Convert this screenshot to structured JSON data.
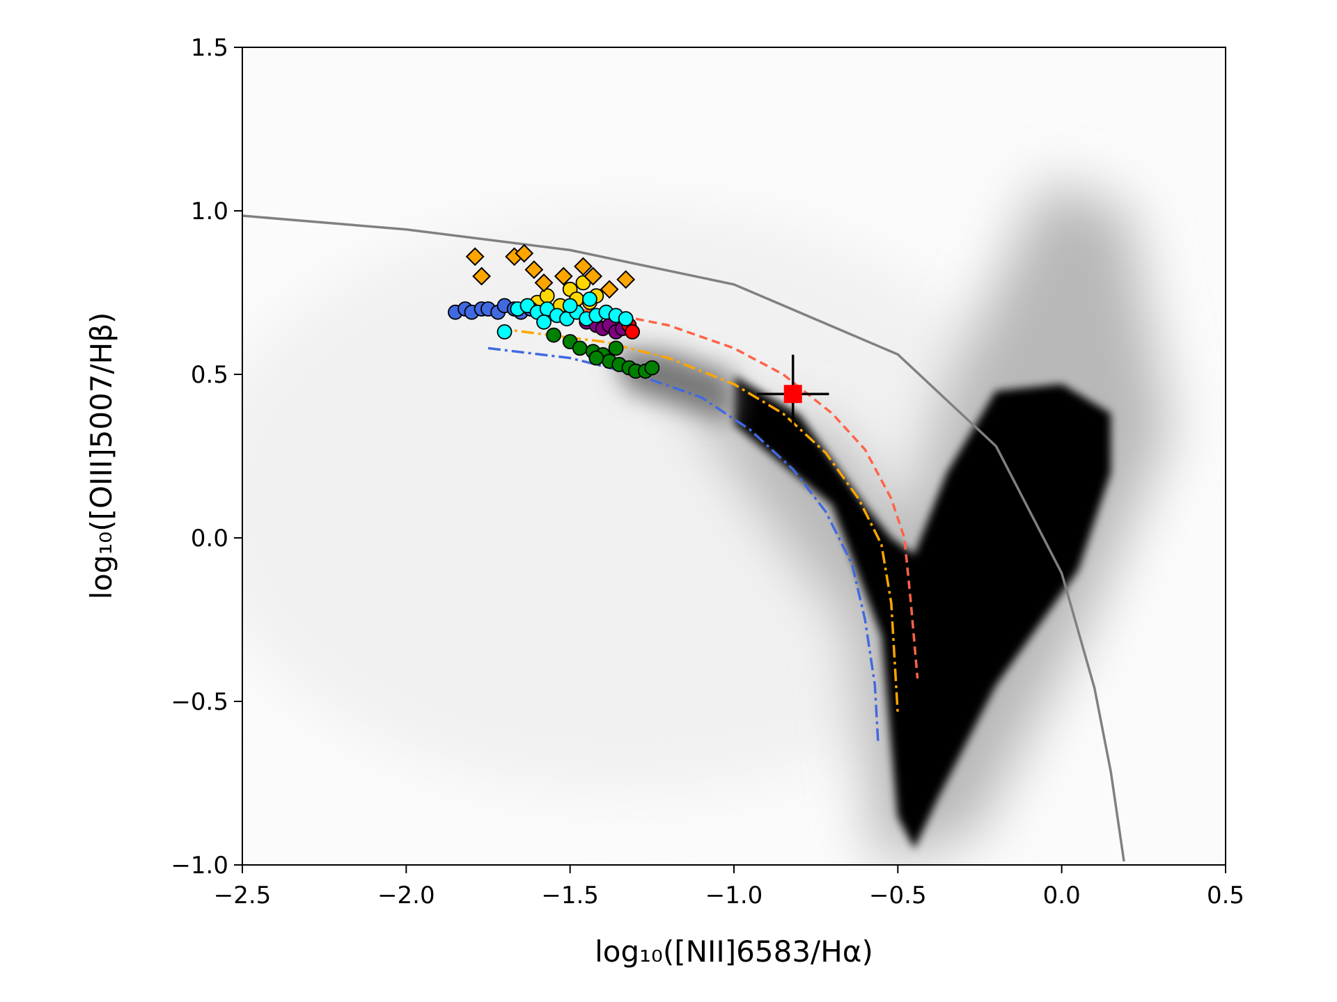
{
  "chart_data": {
    "type": "scatter",
    "xlabel": "log₁₀([NII]6583/Hα)",
    "ylabel": "log₁₀([OIII]5007/Hβ)",
    "xlim": [
      -2.5,
      0.5
    ],
    "ylim": [
      -1.0,
      1.5
    ],
    "xticks": [
      {
        "value": -2.5,
        "label": "−2.5"
      },
      {
        "value": -2.0,
        "label": "−2.0"
      },
      {
        "value": -1.5,
        "label": "−1.5"
      },
      {
        "value": -1.0,
        "label": "−1.0"
      },
      {
        "value": -0.5,
        "label": "−0.5"
      },
      {
        "value": 0,
        "label": "0.0"
      },
      0.5
    ],
    "yticks": [
      {
        "value": -1.0,
        "label": "−1.0"
      },
      {
        "value": -0.5,
        "label": "−0.5"
      },
      {
        "value": 0,
        "label": "0.0"
      },
      0.5,
      {
        "value": 1.0,
        "label": "1.0"
      },
      1.5
    ],
    "series": [
      {
        "kind": "line",
        "color": "#808080",
        "dash": "",
        "x": [
          -2.5,
          -2.0,
          -1.5,
          -1.0,
          -0.5,
          -0.2,
          0.0,
          0.1,
          0.15,
          0.19
        ],
        "values": [
          0.985,
          0.943,
          0.88,
          0.775,
          0.561,
          0.28,
          -0.108,
          -0.459,
          -0.716,
          -0.989
        ]
      },
      {
        "kind": "line",
        "color": "#ff6347",
        "dash": "12 7",
        "x": [
          -1.7,
          -1.4,
          -1.2,
          -1.0,
          -0.85,
          -0.7,
          -0.6,
          -0.52,
          -0.48,
          -0.46,
          -0.44
        ],
        "values": [
          0.72,
          0.69,
          0.65,
          0.58,
          0.5,
          0.38,
          0.27,
          0.12,
          0.0,
          -0.2,
          -0.43
        ]
      },
      {
        "kind": "line",
        "color": "#ffa500",
        "dash": "18 6 4 6",
        "x": [
          -1.72,
          -1.4,
          -1.2,
          -1.0,
          -0.85,
          -0.72,
          -0.62,
          -0.55,
          -0.52,
          -0.5
        ],
        "values": [
          0.64,
          0.6,
          0.55,
          0.47,
          0.38,
          0.26,
          0.12,
          -0.02,
          -0.2,
          -0.54
        ]
      },
      {
        "kind": "line",
        "color": "#4169e1",
        "dash": "18 6 4 6",
        "x": [
          -1.75,
          -1.5,
          -1.3,
          -1.1,
          -0.95,
          -0.82,
          -0.72,
          -0.64,
          -0.6,
          -0.57,
          -0.56
        ],
        "values": [
          0.58,
          0.55,
          0.5,
          0.43,
          0.33,
          0.21,
          0.08,
          -0.08,
          -0.25,
          -0.45,
          -0.63
        ]
      },
      {
        "kind": "circle",
        "color": "#008000",
        "x": [
          -1.55,
          -1.5,
          -1.47,
          -1.43,
          -1.4,
          -1.38,
          -1.35,
          -1.32,
          -1.3,
          -1.27,
          -1.25,
          -1.42,
          -1.36
        ],
        "values": [
          0.62,
          0.6,
          0.58,
          0.57,
          0.56,
          0.54,
          0.53,
          0.52,
          0.51,
          0.51,
          0.52,
          0.55,
          0.58
        ]
      },
      {
        "kind": "circle",
        "color": "#800080",
        "x": [
          -1.45,
          -1.42,
          -1.4,
          -1.38,
          -1.36,
          -1.34
        ],
        "values": [
          0.66,
          0.65,
          0.64,
          0.65,
          0.63,
          0.64
        ]
      },
      {
        "kind": "circle",
        "color": "#ff0000",
        "x": [
          -1.33,
          -1.32,
          -1.31
        ],
        "values": [
          0.67,
          0.65,
          0.63
        ]
      },
      {
        "kind": "circle",
        "color": "#ffd700",
        "x": [
          -1.6,
          -1.57,
          -1.53,
          -1.5,
          -1.48,
          -1.46,
          -1.44,
          -1.42
        ],
        "values": [
          0.72,
          0.74,
          0.71,
          0.76,
          0.73,
          0.78,
          0.72,
          0.74
        ]
      },
      {
        "kind": "circle",
        "color": "#4169e1",
        "x": [
          -1.85,
          -1.82,
          -1.8,
          -1.77,
          -1.75,
          -1.72,
          -1.7,
          -1.67,
          -1.65,
          -1.62
        ],
        "values": [
          0.69,
          0.7,
          0.69,
          0.7,
          0.7,
          0.69,
          0.71,
          0.7,
          0.69,
          0.7
        ]
      },
      {
        "kind": "circle",
        "color": "#00ffff",
        "x": [
          -1.7,
          -1.66,
          -1.63,
          -1.6,
          -1.57,
          -1.54,
          -1.51,
          -1.48,
          -1.45,
          -1.42,
          -1.39,
          -1.36,
          -1.33,
          -1.58,
          -1.5,
          -1.44
        ],
        "values": [
          0.63,
          0.7,
          0.71,
          0.69,
          0.7,
          0.68,
          0.67,
          0.69,
          0.67,
          0.68,
          0.69,
          0.68,
          0.67,
          0.66,
          0.71,
          0.73
        ]
      },
      {
        "kind": "diamond",
        "color": "#ffa500",
        "x": [
          -1.79,
          -1.77,
          -1.67,
          -1.64,
          -1.61,
          -1.58,
          -1.52,
          -1.46,
          -1.43,
          -1.38,
          -1.33
        ],
        "values": [
          0.86,
          0.8,
          0.86,
          0.87,
          0.82,
          0.78,
          0.8,
          0.83,
          0.8,
          0.76,
          0.79
        ]
      }
    ],
    "errorbar": {
      "color": "#ff0000",
      "x": -0.82,
      "y": 0.44,
      "xerr": 0.11,
      "yerr": 0.12
    }
  }
}
